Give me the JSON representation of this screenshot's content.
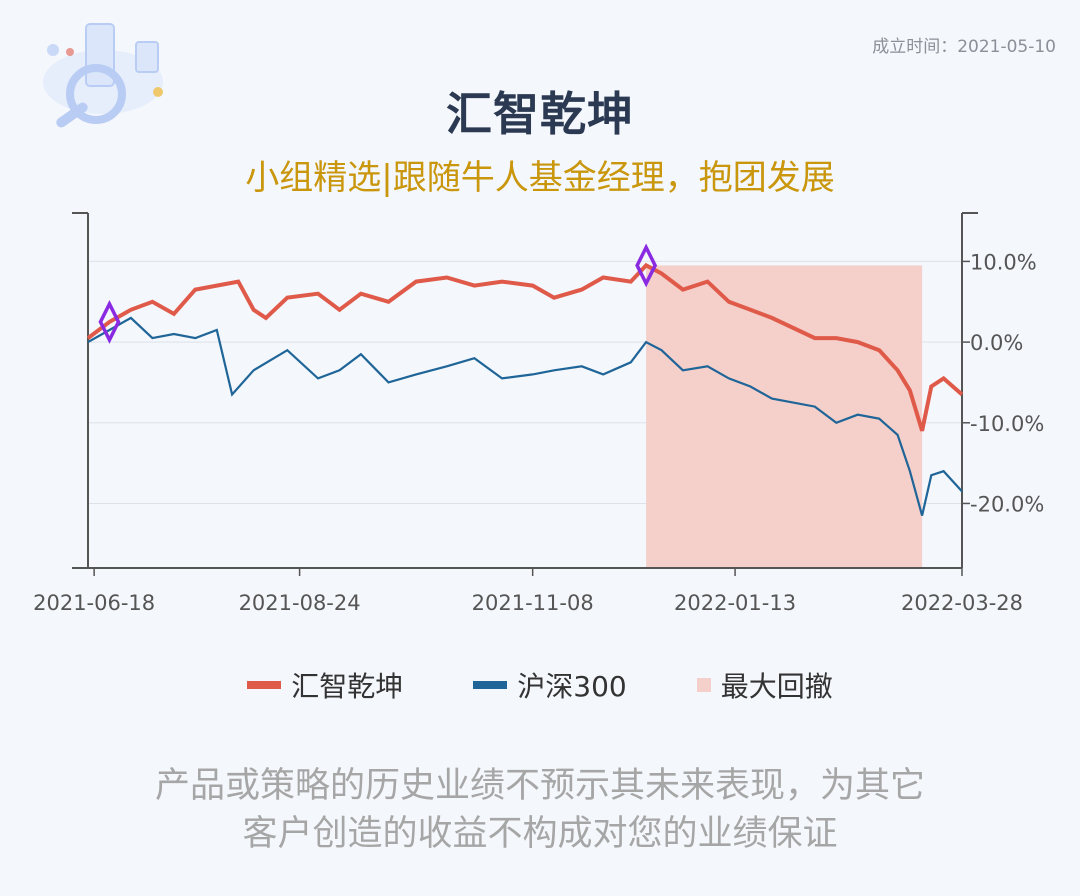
{
  "established": "成立时间：2021-05-10",
  "title": "汇智乾坤",
  "subtitle": "小组精选|跟随牛人基金经理，抱团发展",
  "disclaimer": [
    "产品或策略的历史业绩不预示其未来表现，为其它",
    "客户创造的收益不构成对您的业绩保证"
  ],
  "colors": {
    "fund": "#e05a4a",
    "index": "#1f6598",
    "drawdown": "#f5cfca",
    "marker": "#8a2be2"
  },
  "chart_data": {
    "type": "line",
    "x_tick_labels": [
      "2021-06-18",
      "2021-08-24",
      "2021-11-08",
      "2022-01-13",
      "2022-03-28"
    ],
    "y_tick_labels": [
      "10.0%",
      "0.0%",
      "-10.0%",
      "-20.0%"
    ],
    "y_ticks": [
      10,
      0,
      -10,
      -20
    ],
    "ylim": [
      -28,
      16
    ],
    "x_range": [
      "2021-06-16",
      "2022-03-28"
    ],
    "series": [
      {
        "name": "汇智乾坤",
        "points": [
          [
            "2021-06-16",
            0.5
          ],
          [
            "2021-06-23",
            2.5
          ],
          [
            "2021-06-30",
            4.0
          ],
          [
            "2021-07-07",
            5.0
          ],
          [
            "2021-07-14",
            3.5
          ],
          [
            "2021-07-21",
            6.5
          ],
          [
            "2021-07-28",
            7.0
          ],
          [
            "2021-08-04",
            7.5
          ],
          [
            "2021-08-09",
            4.0
          ],
          [
            "2021-08-13",
            3.0
          ],
          [
            "2021-08-20",
            5.5
          ],
          [
            "2021-08-30",
            6.0
          ],
          [
            "2021-09-06",
            4.0
          ],
          [
            "2021-09-13",
            6.0
          ],
          [
            "2021-09-22",
            5.0
          ],
          [
            "2021-10-01",
            7.5
          ],
          [
            "2021-10-11",
            8.0
          ],
          [
            "2021-10-20",
            7.0
          ],
          [
            "2021-10-29",
            7.5
          ],
          [
            "2021-11-08",
            7.0
          ],
          [
            "2021-11-15",
            5.5
          ],
          [
            "2021-11-24",
            6.5
          ],
          [
            "2021-12-01",
            8.0
          ],
          [
            "2021-12-10",
            7.5
          ],
          [
            "2021-12-15",
            9.5
          ],
          [
            "2021-12-20",
            8.5
          ],
          [
            "2021-12-27",
            6.5
          ],
          [
            "2022-01-04",
            7.5
          ],
          [
            "2022-01-11",
            5.0
          ],
          [
            "2022-01-18",
            4.0
          ],
          [
            "2022-01-25",
            3.0
          ],
          [
            "2022-02-08",
            0.5
          ],
          [
            "2022-02-15",
            0.5
          ],
          [
            "2022-02-22",
            0.0
          ],
          [
            "2022-03-01",
            -1.0
          ],
          [
            "2022-03-07",
            -3.5
          ],
          [
            "2022-03-11",
            -6.0
          ],
          [
            "2022-03-15",
            -11.0
          ],
          [
            "2022-03-18",
            -5.5
          ],
          [
            "2022-03-22",
            -4.5
          ],
          [
            "2022-03-28",
            -6.5
          ]
        ]
      },
      {
        "name": "沪深300",
        "points": [
          [
            "2021-06-16",
            0.0
          ],
          [
            "2021-06-23",
            1.5
          ],
          [
            "2021-06-30",
            3.0
          ],
          [
            "2021-07-07",
            0.5
          ],
          [
            "2021-07-14",
            1.0
          ],
          [
            "2021-07-21",
            0.5
          ],
          [
            "2021-07-28",
            1.5
          ],
          [
            "2021-08-02",
            -6.5
          ],
          [
            "2021-08-09",
            -3.5
          ],
          [
            "2021-08-20",
            -1.0
          ],
          [
            "2021-08-30",
            -4.5
          ],
          [
            "2021-09-06",
            -3.5
          ],
          [
            "2021-09-13",
            -1.5
          ],
          [
            "2021-09-22",
            -5.0
          ],
          [
            "2021-10-01",
            -4.0
          ],
          [
            "2021-10-11",
            -3.0
          ],
          [
            "2021-10-20",
            -2.0
          ],
          [
            "2021-10-29",
            -4.5
          ],
          [
            "2021-11-08",
            -4.0
          ],
          [
            "2021-11-15",
            -3.5
          ],
          [
            "2021-11-24",
            -3.0
          ],
          [
            "2021-12-01",
            -4.0
          ],
          [
            "2021-12-10",
            -2.5
          ],
          [
            "2021-12-15",
            0.0
          ],
          [
            "2021-12-20",
            -1.0
          ],
          [
            "2021-12-27",
            -3.5
          ],
          [
            "2022-01-04",
            -3.0
          ],
          [
            "2022-01-11",
            -4.5
          ],
          [
            "2022-01-18",
            -5.5
          ],
          [
            "2022-01-25",
            -7.0
          ],
          [
            "2022-02-08",
            -8.0
          ],
          [
            "2022-02-15",
            -10.0
          ],
          [
            "2022-02-22",
            -9.0
          ],
          [
            "2022-03-01",
            -9.5
          ],
          [
            "2022-03-07",
            -11.5
          ],
          [
            "2022-03-11",
            -16.0
          ],
          [
            "2022-03-15",
            -21.5
          ],
          [
            "2022-03-18",
            -16.5
          ],
          [
            "2022-03-22",
            -16.0
          ],
          [
            "2022-03-28",
            -18.5
          ]
        ]
      }
    ],
    "drawdown_label": "最大回撤",
    "drawdown_range": [
      "2021-12-15",
      "2022-03-15"
    ],
    "markers": [
      "2021-06-23",
      "2021-12-15"
    ],
    "grid": true,
    "legend_position": "bottom"
  }
}
